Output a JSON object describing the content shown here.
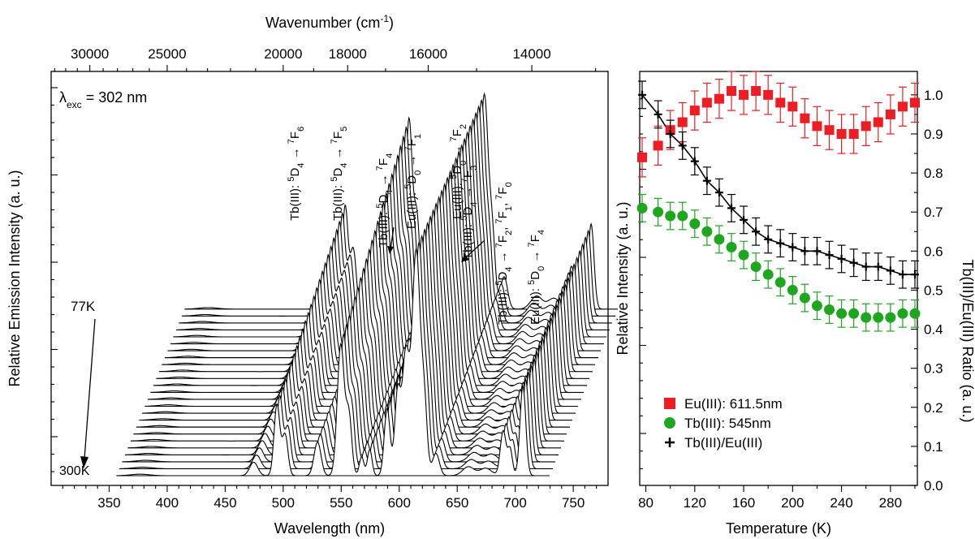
{
  "chart_data": [
    {
      "type": "line",
      "subtype": "stacked-emission-spectra",
      "excitation_label": "λexc = 302 nm",
      "excitation": {
        "symbol": "λ",
        "subscript": "exc",
        "value": " = 302 nm"
      },
      "xlabel": "Wavelength (nm)",
      "ylabel": "Relative Emission Intensity (a. u.)",
      "x2label": {
        "text": "Wavenumber (cm",
        "sup": "-1",
        "close": ")"
      },
      "xlim": [
        300,
        780
      ],
      "xticks": [
        350,
        400,
        450,
        500,
        550,
        600,
        650,
        700,
        750
      ],
      "x2ticks": [
        30000,
        25000,
        20000,
        18000,
        16000,
        14000
      ],
      "temperature_labels": {
        "top": "77K",
        "bottom": "300K"
      },
      "n_spectra": 25,
      "peaks": [
        {
          "x": 490,
          "height": 0.18,
          "width": 3.5
        },
        {
          "x": 510,
          "height": 0.95,
          "width": 2.5
        },
        {
          "x": 517,
          "height": 0.55,
          "width": 2.5
        },
        {
          "x": 545,
          "height": 0.45,
          "width": 3
        },
        {
          "x": 565,
          "height": 1.75,
          "width": 3
        },
        {
          "x": 572,
          "height": 0.8,
          "width": 2.5
        },
        {
          "x": 583,
          "height": 0.25,
          "width": 2
        },
        {
          "x": 590,
          "height": 0.35,
          "width": 2
        },
        {
          "x": 605,
          "height": 0.9,
          "width": 2.5
        },
        {
          "x": 614,
          "height": 1.1,
          "width": 2.5
        },
        {
          "x": 621,
          "height": 1.6,
          "width": 3
        },
        {
          "x": 630,
          "height": 3.0,
          "width": 3.5
        },
        {
          "x": 637,
          "height": 0.9,
          "width": 2.5
        },
        {
          "x": 647,
          "height": 0.3,
          "width": 3
        },
        {
          "x": 675,
          "height": 0.12,
          "width": 5
        },
        {
          "x": 690,
          "height": 0.1,
          "width": 5
        },
        {
          "x": 705,
          "height": 0.6,
          "width": 2.5
        },
        {
          "x": 711,
          "height": 0.35,
          "width": 2
        },
        {
          "x": 722,
          "height": 1.2,
          "width": 2.5
        }
      ],
      "transitions": [
        {
          "pre": "Tb(III): ",
          "a_sup": "5",
          "a": "D",
          "a_sub": "4",
          "arrow": " → ",
          "b_sup": "7",
          "b": "F",
          "b_sub": "6"
        },
        {
          "pre": "Tb(III): ",
          "a_sup": "5",
          "a": "D",
          "a_sub": "4",
          "arrow": " → ",
          "b_sup": "7",
          "b": "F",
          "b_sub": "5"
        },
        {
          "pre": "Tb(III): ",
          "a_sup": "5",
          "a": "D",
          "a_sub": "4",
          "arrow": " → ",
          "b_sup": "7",
          "b": "F",
          "b_sub": "4"
        },
        {
          "pre": "Eu(III): ",
          "a_sup": "5",
          "a": "D",
          "a_sub": "0",
          "arrow": " → ",
          "b_sup": "7",
          "b": "F",
          "b_sub": "1"
        },
        {
          "pre": "Eu(III): ",
          "a_sup": "5",
          "a": "D",
          "a_sub": "0",
          "arrow": " → ",
          "b_sup": "7",
          "b": "F",
          "b_sub": "2"
        },
        {
          "pre": "Tb(III): ",
          "a_sup": "5",
          "a": "D",
          "a_sub": "4",
          "arrow": " → ",
          "b_sup": "7",
          "b": "F",
          "b_sub": "3"
        },
        {
          "pre": "Tb(III): ",
          "a_sup": "5",
          "a": "D",
          "a_sub": "4",
          "arrow": " → ",
          "b_sup": "7",
          "b": "F",
          "b_sub": "2",
          "c_sup": "7",
          "c": "F",
          "c_sub": "1",
          "d_sup": "7",
          "d": "F",
          "d_sub": "0"
        },
        {
          "pre": "Eu(III): ",
          "a_sup": "5",
          "a": "D",
          "a_sub": "0",
          "arrow": " → ",
          "b_sup": "7",
          "b": "F",
          "b_sub": "4"
        }
      ]
    },
    {
      "type": "scatter",
      "xlabel": "Temperature (K)",
      "ylabel": "Relative Intensity (a. u.)",
      "y2label": "Tb(III)/Eu(III) Ratio (a. u.)",
      "xlim": [
        75,
        302
      ],
      "ylim": [
        0.0,
        1.06
      ],
      "xticks": [
        80,
        120,
        160,
        200,
        240,
        280
      ],
      "yticks": [
        0.0,
        0.1,
        0.2,
        0.3,
        0.4,
        0.5,
        0.6,
        0.7,
        0.8,
        0.9,
        1.0
      ],
      "x": [
        77,
        90,
        100,
        110,
        120,
        130,
        140,
        150,
        160,
        170,
        180,
        190,
        200,
        210,
        220,
        230,
        240,
        250,
        260,
        270,
        280,
        290,
        300
      ],
      "legend_position": "bottom-left",
      "series": [
        {
          "name": "Eu(III): 611.5nm",
          "marker": "square",
          "color": "#ee1d24",
          "values": [
            0.84,
            0.87,
            0.91,
            0.93,
            0.96,
            0.98,
            0.99,
            1.01,
            1.0,
            1.01,
            1.0,
            0.98,
            0.97,
            0.94,
            0.92,
            0.91,
            0.9,
            0.9,
            0.92,
            0.93,
            0.95,
            0.97,
            0.98
          ],
          "error": 0.05
        },
        {
          "name": "Tb(III): 545nm",
          "marker": "circle",
          "color": "#1ea61e",
          "values": [
            0.71,
            0.7,
            0.69,
            0.69,
            0.67,
            0.65,
            0.63,
            0.61,
            0.59,
            0.56,
            0.54,
            0.52,
            0.5,
            0.48,
            0.46,
            0.45,
            0.44,
            0.44,
            0.43,
            0.43,
            0.43,
            0.44,
            0.44
          ],
          "error": 0.035
        },
        {
          "name": "Tb(III)/Eu(III)",
          "marker": "plus",
          "color": "#000000",
          "values": [
            1.0,
            0.95,
            0.9,
            0.87,
            0.83,
            0.78,
            0.75,
            0.71,
            0.68,
            0.65,
            0.63,
            0.62,
            0.61,
            0.6,
            0.6,
            0.59,
            0.58,
            0.57,
            0.56,
            0.56,
            0.55,
            0.54,
            0.54
          ],
          "error": 0.035,
          "fit_line": true
        }
      ]
    }
  ]
}
